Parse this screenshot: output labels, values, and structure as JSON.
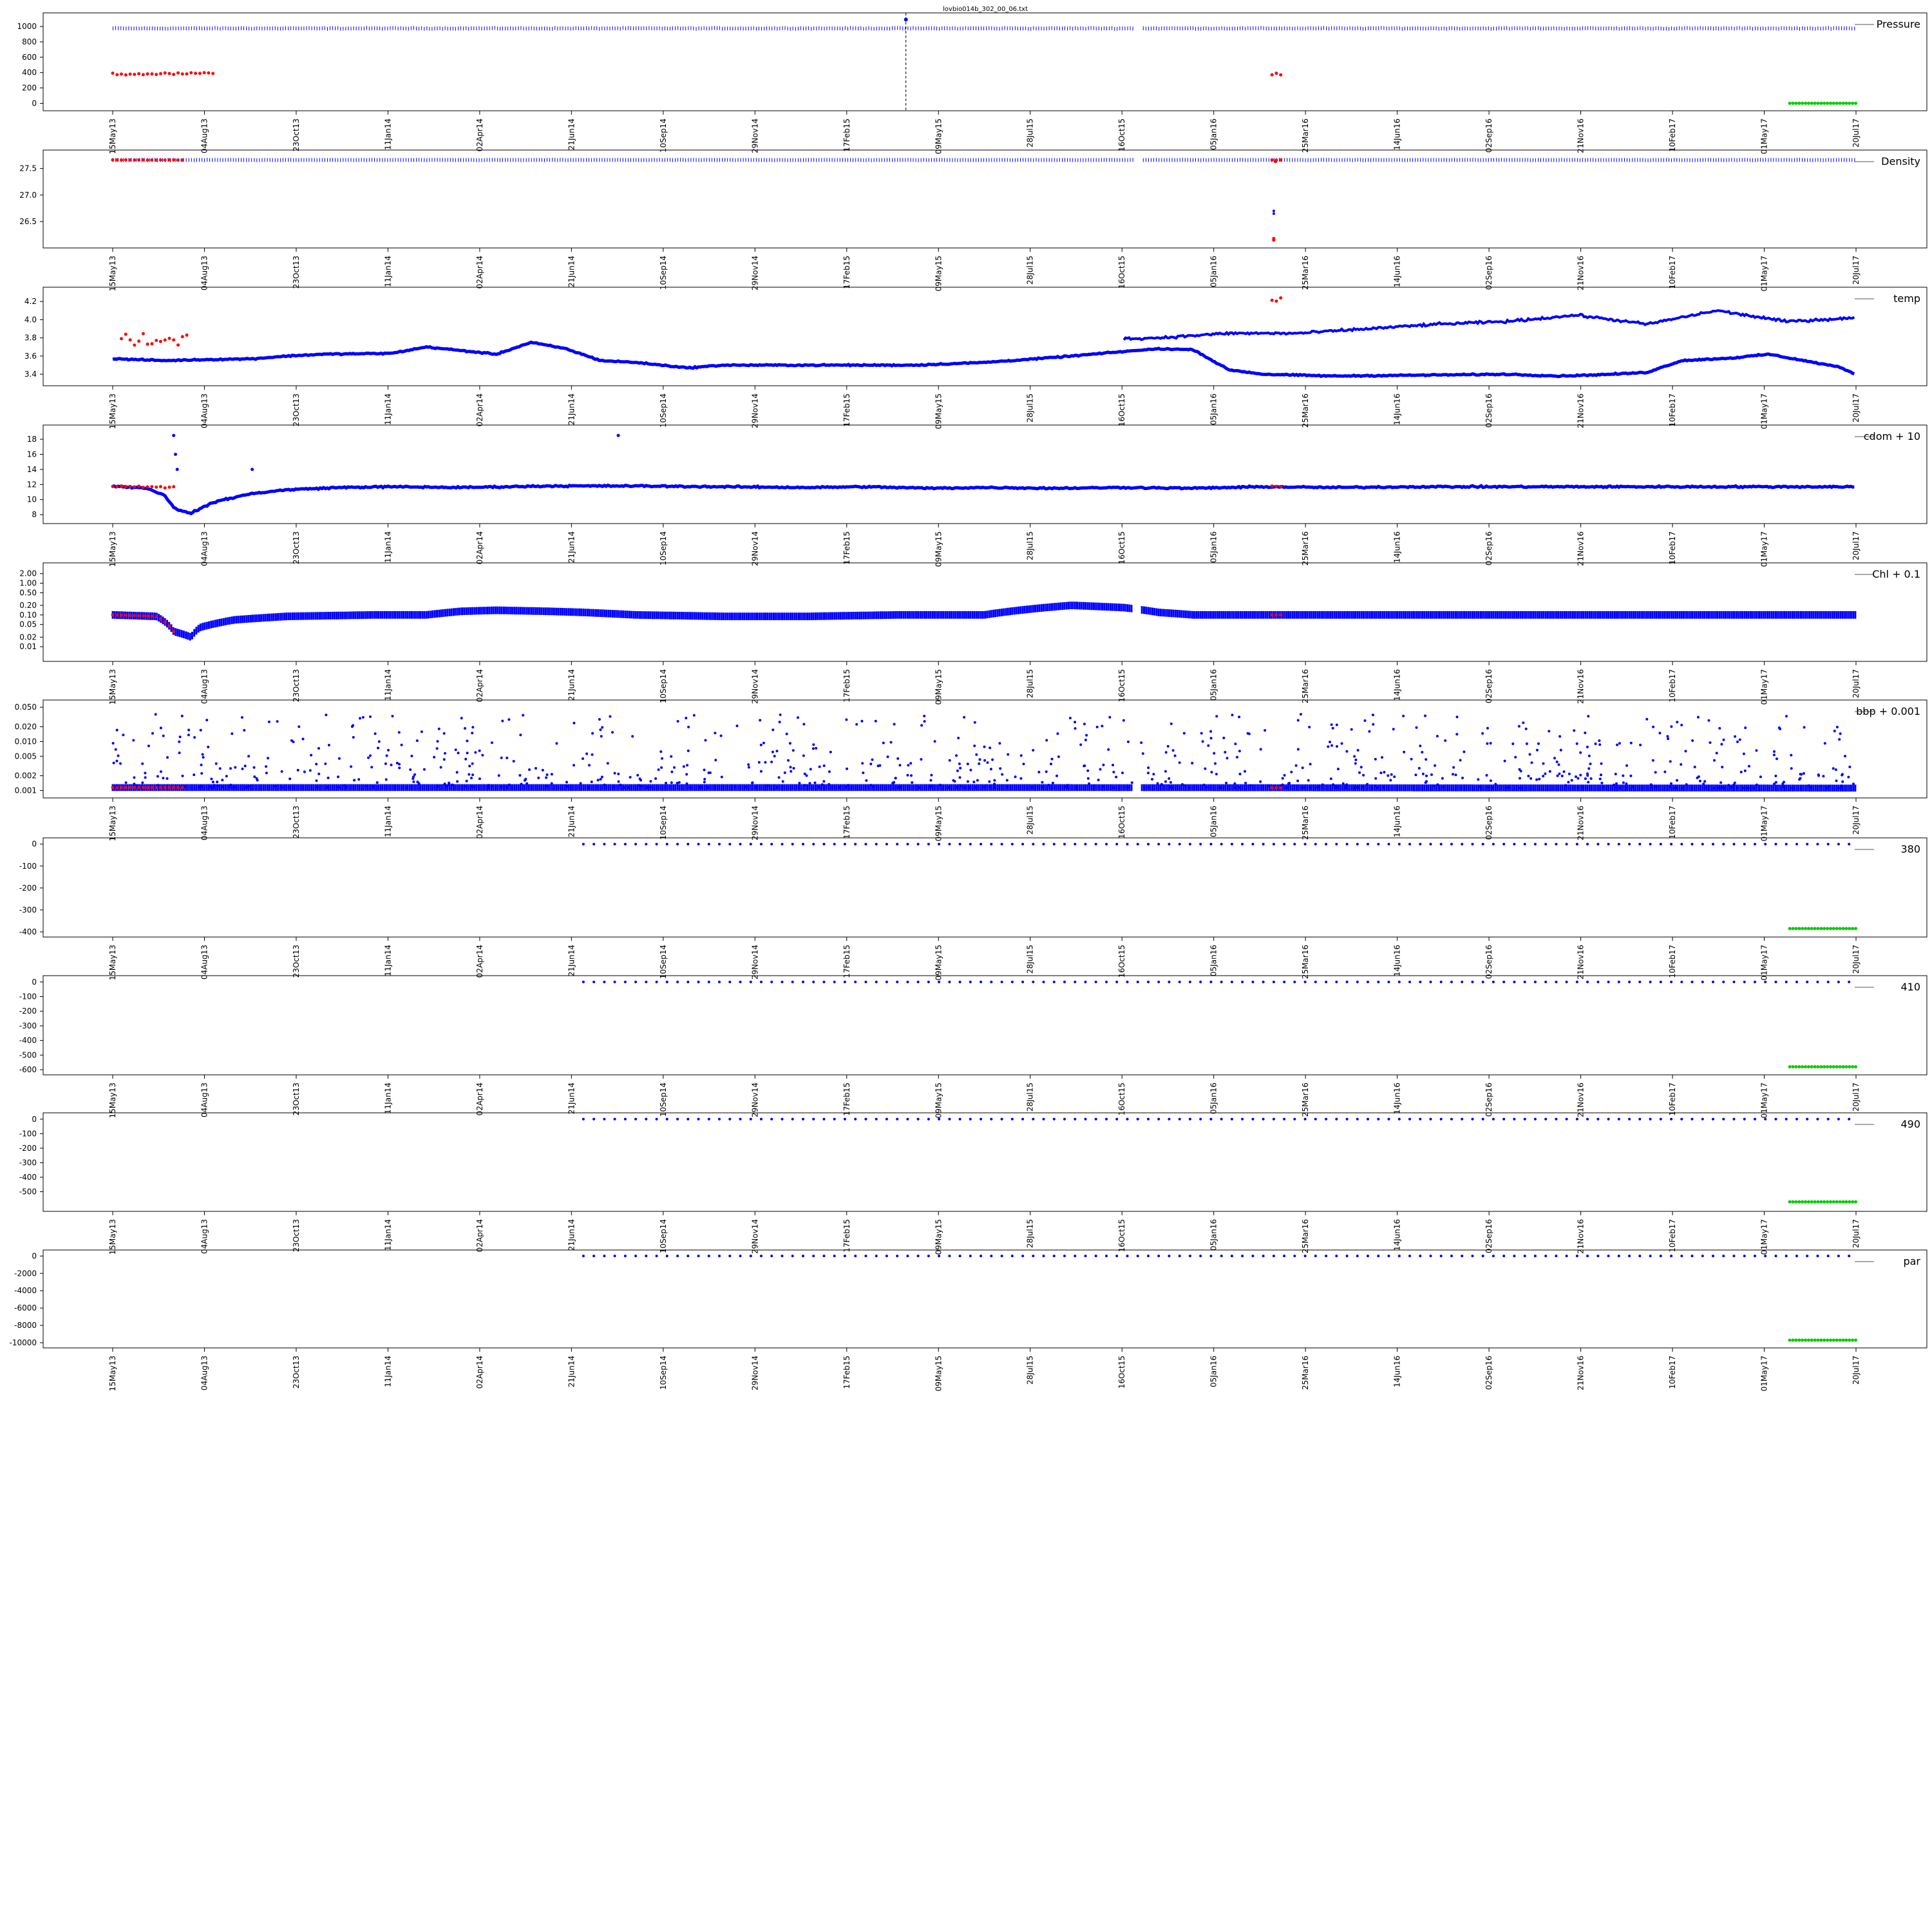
{
  "figure": {
    "title": "lovbio014b_302_00_06.txt",
    "x_tick_labels": [
      "15May13",
      "04Aug13",
      "23Oct13",
      "11Jan14",
      "02Apr14",
      "21Jun14",
      "10Sep14",
      "29Nov14",
      "17Feb15",
      "09May15",
      "28Jul15",
      "16Oct15",
      "05Jan16",
      "25Mar16",
      "14Jun16",
      "02Sep16",
      "21Nov16",
      "10Feb17",
      "01May17",
      "20Jul17"
    ],
    "colors": {
      "main": "#0000ff",
      "flag_red": "#ff0000",
      "flag_green": "#00cc00",
      "axis": "#000000"
    }
  },
  "chart_data": [
    {
      "type": "scatter",
      "legend": "Pressure",
      "y_ticks": [
        "1000",
        "800",
        "600",
        "400",
        "200",
        "0"
      ],
      "ylim": [
        -30,
        1110
      ],
      "baseline": 975,
      "noise": 8,
      "red_level": 385,
      "red_spread": 25,
      "red_spans": [
        [
          0.0,
          0.06
        ],
        [
          0.665,
          0.67
        ]
      ],
      "green_level": 0,
      "green_span": [
        0.962,
        1.0
      ],
      "spike": {
        "pos": 0.455,
        "value": 1090
      }
    },
    {
      "type": "scatter",
      "legend": "Density",
      "y_ticks": [
        "27.5",
        "27.0",
        "26.5"
      ],
      "ylim": [
        26.1,
        27.75
      ],
      "baseline": 27.66,
      "noise": 0.006,
      "red_level": 27.66,
      "red_spread": 0.004,
      "red_spans": [
        [
          0.0,
          0.04
        ],
        [
          0.665,
          0.67
        ]
      ],
      "red_extra": [
        [
          0.666,
          26.15
        ],
        [
          0.666,
          26.18
        ],
        [
          0.667,
          27.63
        ]
      ],
      "outliers": [
        [
          0.666,
          26.65
        ],
        [
          0.666,
          26.7
        ]
      ]
    },
    {
      "type": "line",
      "legend": "temp",
      "y_ticks": [
        "4.2",
        "4.0",
        "3.8",
        "3.6",
        "3.4"
      ],
      "ylim": [
        3.33,
        4.3
      ],
      "knots": [
        [
          0.0,
          3.57
        ],
        [
          0.03,
          3.55
        ],
        [
          0.05,
          3.56
        ],
        [
          0.08,
          3.57
        ],
        [
          0.1,
          3.6
        ],
        [
          0.12,
          3.62
        ],
        [
          0.16,
          3.63
        ],
        [
          0.18,
          3.7
        ],
        [
          0.22,
          3.62
        ],
        [
          0.24,
          3.75
        ],
        [
          0.26,
          3.68
        ],
        [
          0.28,
          3.55
        ],
        [
          0.3,
          3.53
        ],
        [
          0.33,
          3.47
        ],
        [
          0.35,
          3.5
        ],
        [
          0.42,
          3.5
        ],
        [
          0.46,
          3.5
        ],
        [
          0.5,
          3.53
        ],
        [
          0.53,
          3.57
        ],
        [
          0.55,
          3.6
        ],
        [
          0.58,
          3.65
        ],
        [
          0.6,
          3.68
        ],
        [
          0.62,
          3.67
        ],
        [
          0.64,
          3.45
        ],
        [
          0.66,
          3.4
        ],
        [
          0.7,
          3.38
        ],
        [
          0.75,
          3.39
        ],
        [
          0.8,
          3.4
        ],
        [
          0.83,
          3.38
        ],
        [
          0.86,
          3.4
        ],
        [
          0.88,
          3.42
        ],
        [
          0.9,
          3.55
        ],
        [
          0.93,
          3.58
        ],
        [
          0.95,
          3.62
        ],
        [
          0.97,
          3.55
        ],
        [
          0.99,
          3.48
        ],
        [
          1.0,
          3.4
        ]
      ],
      "knots2": [
        [
          0.0,
          3.55
        ],
        [
          0.04,
          3.58
        ],
        [
          0.08,
          3.72
        ],
        [
          0.12,
          3.7
        ],
        [
          0.16,
          3.7
        ],
        [
          0.2,
          3.72
        ],
        [
          0.24,
          3.7
        ],
        [
          0.28,
          3.68
        ],
        [
          0.32,
          3.7
        ],
        [
          0.36,
          3.72
        ],
        [
          0.4,
          3.75
        ],
        [
          0.44,
          3.72
        ],
        [
          0.48,
          3.75
        ],
        [
          0.52,
          3.75
        ],
        [
          0.56,
          3.78
        ],
        [
          0.6,
          3.8
        ],
        [
          0.64,
          3.85
        ],
        [
          0.68,
          3.85
        ],
        [
          0.72,
          3.9
        ],
        [
          0.76,
          3.95
        ],
        [
          0.8,
          3.98
        ],
        [
          0.84,
          4.05
        ],
        [
          0.88,
          3.95
        ],
        [
          0.92,
          4.1
        ],
        [
          0.96,
          3.98
        ],
        [
          1.0,
          4.02
        ]
      ],
      "split": 0.58,
      "red_level": 3.78,
      "red_spread": 0.1,
      "red_spans": [
        [
          0.005,
          0.045
        ],
        [
          0.665,
          0.67
        ]
      ],
      "red_extra_level": 4.23
    },
    {
      "type": "line",
      "legend": "cdom + 10",
      "y_ticks": [
        "18",
        "16",
        "14",
        "12",
        "10",
        "8"
      ],
      "ylim": [
        7.5,
        19.2
      ],
      "knots": [
        [
          0.0,
          11.8
        ],
        [
          0.02,
          11.5
        ],
        [
          0.03,
          10.5
        ],
        [
          0.035,
          9.0
        ],
        [
          0.04,
          8.4
        ],
        [
          0.045,
          8.2
        ],
        [
          0.05,
          8.8
        ],
        [
          0.06,
          9.8
        ],
        [
          0.08,
          10.8
        ],
        [
          0.1,
          11.3
        ],
        [
          0.13,
          11.6
        ],
        [
          0.16,
          11.7
        ],
        [
          0.2,
          11.6
        ],
        [
          0.25,
          11.8
        ],
        [
          0.3,
          11.8
        ],
        [
          0.35,
          11.7
        ],
        [
          0.4,
          11.6
        ],
        [
          0.43,
          11.7
        ],
        [
          0.47,
          11.5
        ],
        [
          0.5,
          11.6
        ],
        [
          0.54,
          11.5
        ],
        [
          0.58,
          11.6
        ],
        [
          0.62,
          11.5
        ],
        [
          0.66,
          11.7
        ],
        [
          0.7,
          11.6
        ],
        [
          0.75,
          11.7
        ],
        [
          0.8,
          11.7
        ],
        [
          0.85,
          11.7
        ],
        [
          0.9,
          11.7
        ],
        [
          0.95,
          11.7
        ],
        [
          1.0,
          11.7
        ]
      ],
      "noise": 0.15,
      "spikes": [
        [
          0.035,
          18.5
        ],
        [
          0.036,
          16.0
        ],
        [
          0.037,
          14.0
        ],
        [
          0.08,
          14.0
        ],
        [
          0.29,
          18.5
        ]
      ],
      "red_level": 11.7,
      "red_spread": 0.2,
      "red_spans": [
        [
          0.0,
          0.035
        ],
        [
          0.665,
          0.67
        ]
      ]
    },
    {
      "type": "band",
      "legend": "Chl + 0.1",
      "y_ticks": [
        "2.00",
        "1.00",
        "0.50",
        "0.20",
        "0.10",
        "0.05",
        "0.02",
        "0.01"
      ],
      "y_tick_values": [
        2.0,
        1.0,
        0.5,
        0.2,
        0.1,
        0.05,
        0.02,
        0.01
      ],
      "log_range": [
        0.005,
        3.0
      ],
      "knots": [
        [
          0.0,
          0.1
        ],
        [
          0.025,
          0.09
        ],
        [
          0.035,
          0.03
        ],
        [
          0.045,
          0.02
        ],
        [
          0.05,
          0.04
        ],
        [
          0.07,
          0.07
        ],
        [
          0.1,
          0.09
        ],
        [
          0.15,
          0.1
        ],
        [
          0.18,
          0.1
        ],
        [
          0.2,
          0.13
        ],
        [
          0.22,
          0.14
        ],
        [
          0.25,
          0.13
        ],
        [
          0.27,
          0.12
        ],
        [
          0.3,
          0.1
        ],
        [
          0.35,
          0.09
        ],
        [
          0.4,
          0.09
        ],
        [
          0.45,
          0.1
        ],
        [
          0.5,
          0.1
        ],
        [
          0.53,
          0.16
        ],
        [
          0.55,
          0.2
        ],
        [
          0.58,
          0.17
        ],
        [
          0.6,
          0.12
        ],
        [
          0.62,
          0.1
        ],
        [
          0.7,
          0.1
        ],
        [
          0.8,
          0.1
        ],
        [
          0.9,
          0.1
        ],
        [
          1.0,
          0.1
        ]
      ],
      "band_log": 0.12,
      "red_level": 0.1,
      "red_spans": [
        [
          0.0,
          0.035
        ],
        [
          0.665,
          0.67
        ]
      ]
    },
    {
      "type": "band",
      "legend": "bbp + 0.001",
      "y_ticks": [
        "0.050",
        "0.020",
        "0.010",
        "0.005",
        "0.002",
        "0.001"
      ],
      "y_tick_values": [
        0.05,
        0.02,
        0.01,
        0.005,
        0.002,
        0.001
      ],
      "log_range": [
        0.0009,
        0.055
      ],
      "knots": [
        [
          0.0,
          0.00115
        ],
        [
          0.5,
          0.00115
        ],
        [
          1.0,
          0.00112
        ]
      ],
      "band_log": 0.07,
      "scatter_outliers": 900,
      "red_level": 0.00115,
      "red_spans": [
        [
          0.0,
          0.04
        ],
        [
          0.665,
          0.67
        ]
      ]
    },
    {
      "type": "scatter",
      "legend": "380",
      "y_ticks": [
        "0",
        "-100",
        "-200",
        "-300",
        "-400"
      ],
      "ylim": [
        -400,
        5
      ],
      "sparse_start": 0.27,
      "level": 0,
      "green_level": -385,
      "green_span": [
        0.962,
        1.0
      ]
    },
    {
      "type": "scatter",
      "legend": "410",
      "y_ticks": [
        "0",
        "-100",
        "-200",
        "-300",
        "-400",
        "-500",
        "-600"
      ],
      "ylim": [
        -600,
        8
      ],
      "sparse_start": 0.27,
      "level": 0,
      "green_level": -580,
      "green_span": [
        0.962,
        1.0
      ]
    },
    {
      "type": "scatter",
      "legend": "490",
      "y_ticks": [
        "0",
        "-100",
        "-200",
        "-300",
        "-400",
        "-500"
      ],
      "ylim": [
        -600,
        8
      ],
      "sparse_start": 0.27,
      "level": 0,
      "green_level": -570,
      "green_span": [
        0.962,
        1.0
      ]
    },
    {
      "type": "scatter",
      "legend": "par",
      "y_ticks": [
        "0",
        "-2000",
        "-4000",
        "-6000",
        "-8000",
        "-10000"
      ],
      "ylim": [
        -10000,
        100
      ],
      "sparse_start": 0.27,
      "level": 0,
      "green_level": -9700,
      "green_span": [
        0.962,
        1.0
      ]
    }
  ]
}
